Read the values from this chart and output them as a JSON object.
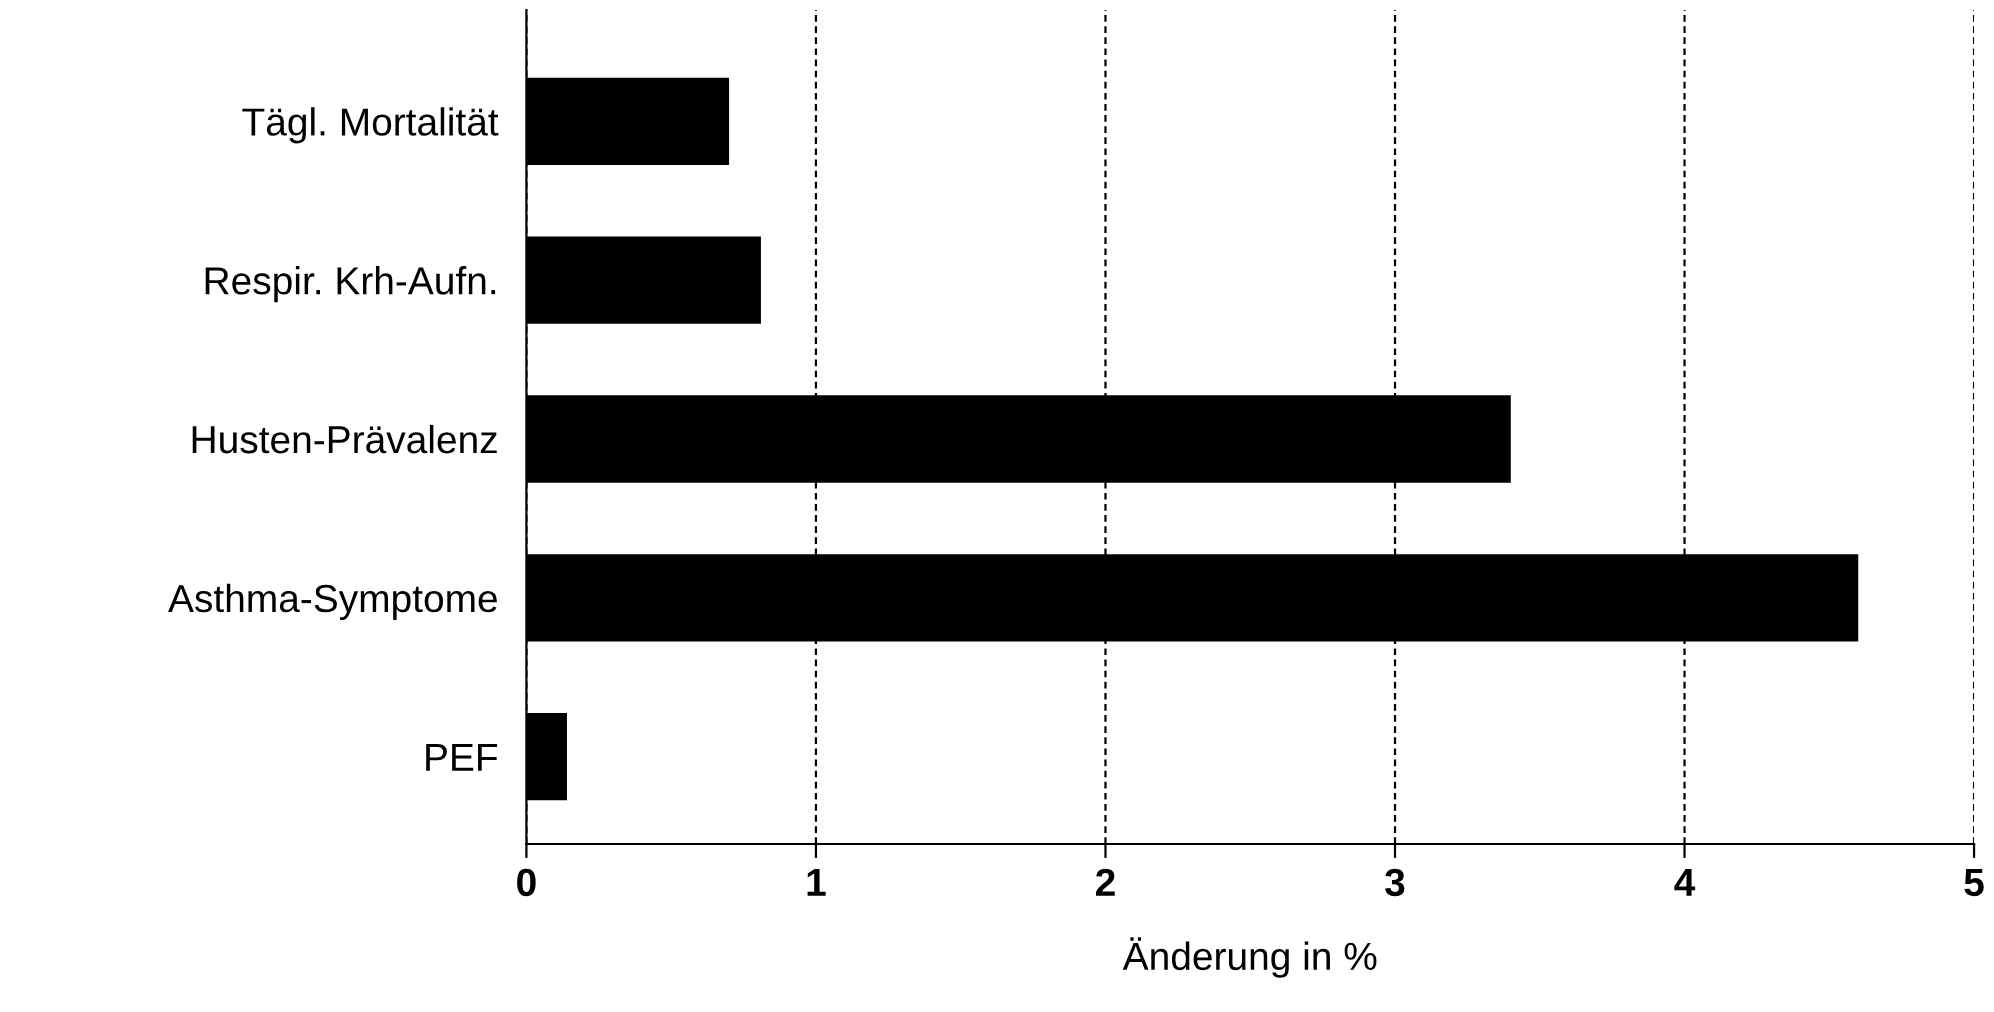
{
  "chart_data": {
    "type": "bar",
    "orientation": "horizontal",
    "xlabel": "Änderung in %",
    "categories": [
      "Tägl. Mortalität",
      "Respir. Krh-Aufn.",
      "Husten-Prävalenz",
      "Asthma-Symptome",
      "PEF"
    ],
    "values": [
      0.7,
      0.81,
      3.4,
      4.6,
      0.14
    ],
    "color": "#000000",
    "xlim": [
      0,
      5
    ],
    "xticks": [
      0,
      1,
      2,
      3,
      4,
      5
    ],
    "grid": "x",
    "line_style": "dashed"
  }
}
